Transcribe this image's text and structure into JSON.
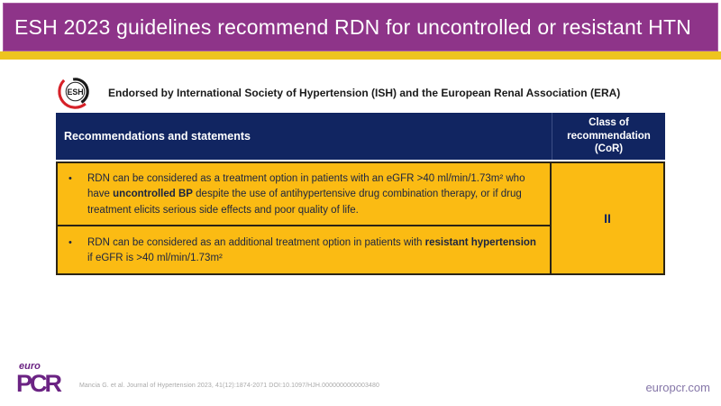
{
  "title": "ESH 2023 guidelines recommend RDN for uncontrolled or resistant HTN",
  "endorsement": "Endorsed by International Society of Hypertension (ISH) and the European Renal Association (ERA)",
  "esh_logo": {
    "label": "ESH"
  },
  "table": {
    "header_col1": "Recommendations and statements",
    "header_col2": "Class of\nrecommendation\n(CoR)",
    "rows": [
      {
        "bullet": "•",
        "segments": [
          {
            "text": "RDN can be considered as a treatment option in patients with an eGFR >40 ml/min/1.73m² who have ",
            "bold": false
          },
          {
            "text": "uncontrolled BP",
            "bold": true
          },
          {
            "text": " despite the use of antihypertensive drug combination therapy, or if drug treatment elicits serious side effects and poor quality of life.",
            "bold": false
          }
        ]
      },
      {
        "bullet": "•",
        "segments": [
          {
            "text": "RDN can be considered as an additional treatment option in patients with ",
            "bold": false
          },
          {
            "text": "resistant hypertension",
            "bold": true
          },
          {
            "text": " if eGFR is >40 ml/min/1.73m²",
            "bold": false
          }
        ]
      }
    ],
    "cor_value": "II"
  },
  "footer": {
    "logo_top": "euro",
    "logo_bottom": "PCR",
    "citation": "Mancia G. et al. Journal of Hypertension 2023, 41(12):1874-2071 DOI:10.1097/HJH.0000000000003480",
    "website": "europcr.com"
  },
  "colors": {
    "title_purple": "#8E3489",
    "accent_yellow": "#EEC41F",
    "header_navy": "#112561",
    "cell_gold": "#FBBB13",
    "brand_purple": "#6B2383",
    "esh_red": "#D62128"
  }
}
